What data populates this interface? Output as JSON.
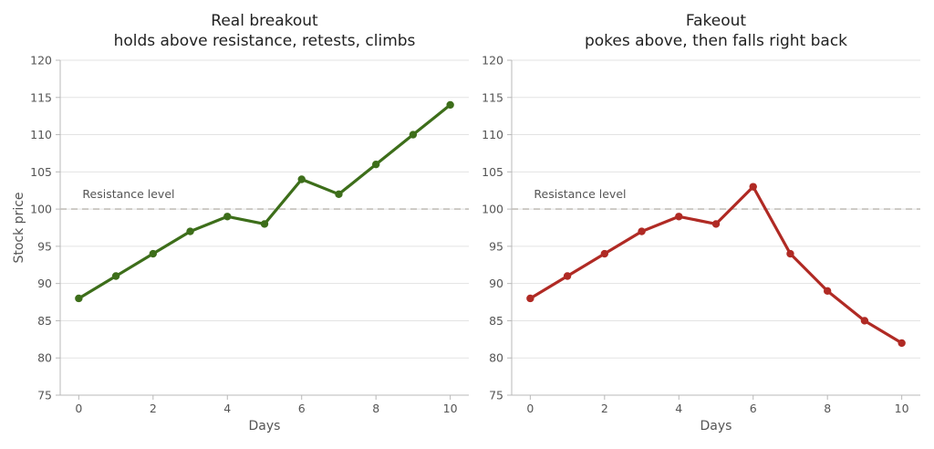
{
  "chart_data": [
    {
      "type": "line",
      "title": "Real breakout",
      "subtitle": "holds above resistance, retests, climbs",
      "xlabel": "Days",
      "ylabel": "Stock price",
      "x": [
        0,
        1,
        2,
        3,
        4,
        5,
        6,
        7,
        8,
        9,
        10
      ],
      "series": [
        {
          "values": [
            88,
            91,
            94,
            97,
            99,
            98,
            104,
            102,
            106,
            110,
            114
          ],
          "color": "#3d6e1a"
        }
      ],
      "xlim": [
        -0.5,
        10.5
      ],
      "ylim": [
        75,
        120
      ],
      "xticks": [
        0,
        2,
        4,
        6,
        8,
        10
      ],
      "yticks": [
        75,
        80,
        85,
        90,
        95,
        100,
        105,
        110,
        115,
        120
      ],
      "grid": "horizontal",
      "reference_line": {
        "y": 100,
        "label": "Resistance level",
        "style": "dashed"
      }
    },
    {
      "type": "line",
      "title": "Fakeout",
      "subtitle": "pokes above, then falls right back",
      "xlabel": "Days",
      "ylabel": "",
      "x": [
        0,
        1,
        2,
        3,
        4,
        5,
        6,
        7,
        8,
        9,
        10
      ],
      "series": [
        {
          "values": [
            88,
            91,
            94,
            97,
            99,
            98,
            103,
            94,
            89,
            85,
            82
          ],
          "color": "#b02a24"
        }
      ],
      "xlim": [
        -0.5,
        10.5
      ],
      "ylim": [
        75,
        120
      ],
      "xticks": [
        0,
        2,
        4,
        6,
        8,
        10
      ],
      "yticks": [
        75,
        80,
        85,
        90,
        95,
        100,
        105,
        110,
        115,
        120
      ],
      "grid": "horizontal",
      "reference_line": {
        "y": 100,
        "label": "Resistance level",
        "style": "dashed"
      }
    }
  ]
}
